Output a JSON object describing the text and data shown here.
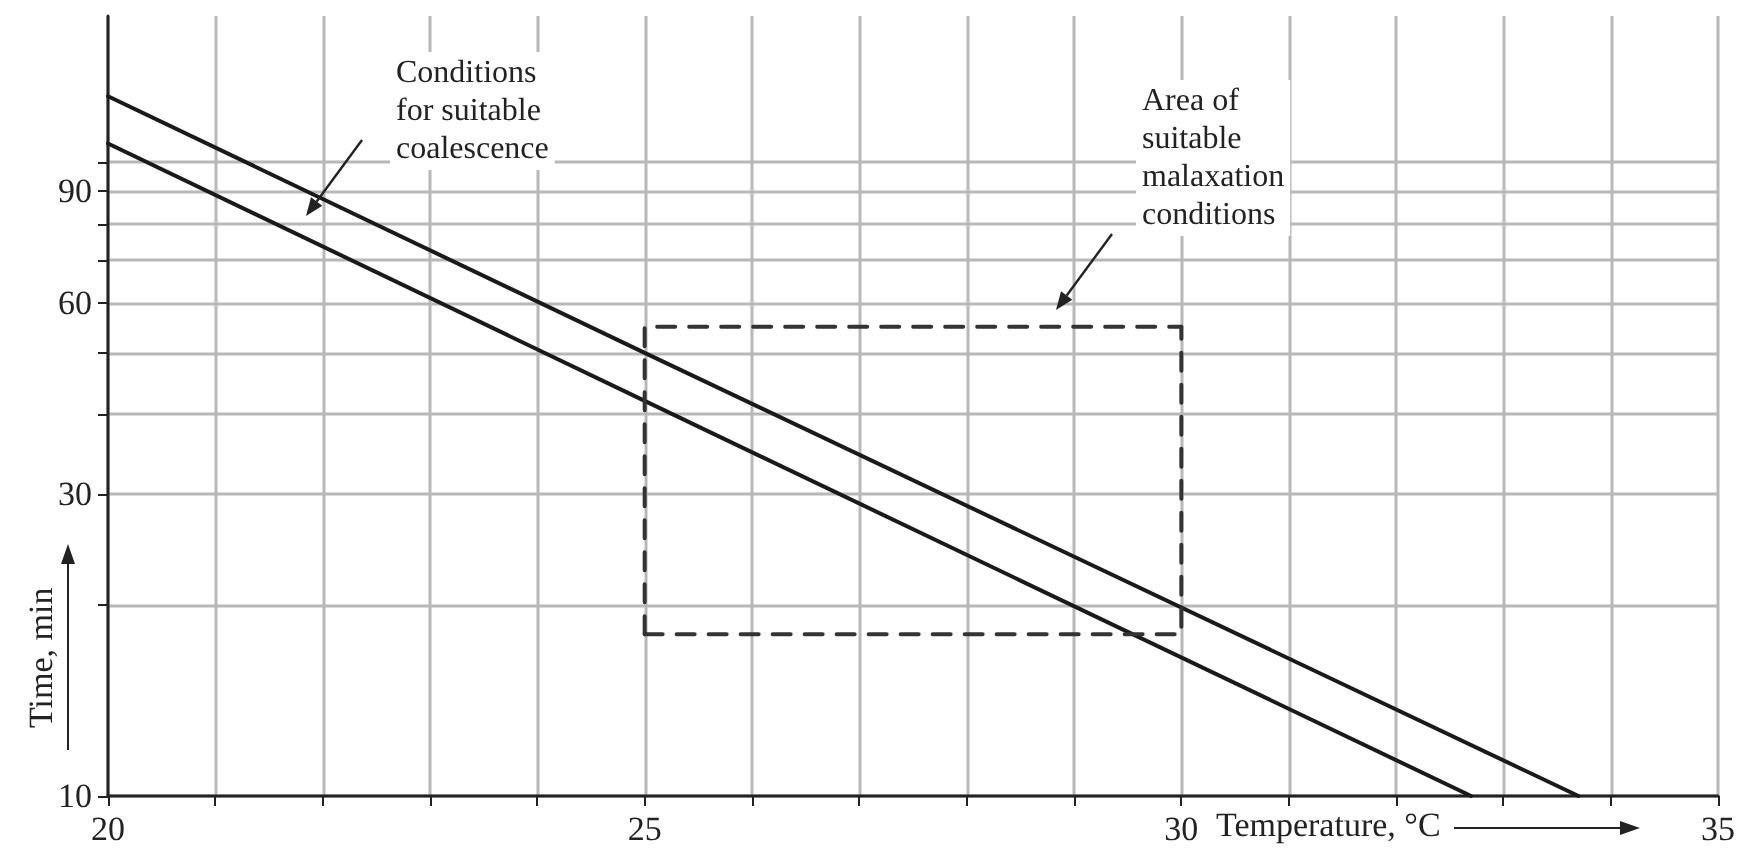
{
  "chart_data": {
    "type": "line",
    "xlabel": "Temperature, °C",
    "ylabel": "Time, min",
    "log": "y",
    "xlim": [
      20,
      35
    ],
    "ylim": [
      10,
      170
    ],
    "xticks": [
      20,
      {
        "value": 21,
        "label": null
      },
      {
        "value": 22,
        "label": null
      },
      {
        "value": 23,
        "label": null
      },
      {
        "value": 24,
        "label": null
      },
      25,
      {
        "value": 26,
        "label": null
      },
      {
        "value": 27,
        "label": null
      },
      {
        "value": 28,
        "label": null
      },
      {
        "value": 29,
        "label": null
      },
      30,
      {
        "value": 31,
        "label": null
      },
      {
        "value": 32,
        "label": null
      },
      {
        "value": 33,
        "label": null
      },
      {
        "value": 34,
        "label": null
      },
      35
    ],
    "yticks": [
      10,
      {
        "value": 20,
        "label": null
      },
      30,
      {
        "value": 40,
        "label": null
      },
      {
        "value": 50,
        "label": null
      },
      60,
      {
        "value": 70,
        "label": null
      },
      {
        "value": 80,
        "label": null
      },
      90,
      {
        "value": 100,
        "label": null
      }
    ],
    "grid": true,
    "marker": "none",
    "series": [
      {
        "x": [
          20,
          25,
          33.7
        ],
        "values": [
          127,
          50,
          10
        ],
        "color": "#1a1a1a",
        "line_style": "solid"
      },
      {
        "x": [
          20,
          25,
          32.7
        ],
        "values": [
          107,
          42,
          10
        ],
        "color": "#1a1a1a",
        "line_style": "solid"
      },
      {
        "x": [
          25,
          25,
          30
        ],
        "values": [
          18,
          55,
          55
        ],
        "color": "#333333",
        "line_style": "dashed"
      },
      {
        "x": [
          25,
          30,
          30
        ],
        "values": [
          18,
          18,
          55
        ],
        "color": "#333333",
        "line_style": "dashed"
      }
    ],
    "annotations": [
      "Conditions\nfor suitable\ncoalescence",
      "Area of\nsuitable\nmalaxation\nconditions"
    ]
  }
}
